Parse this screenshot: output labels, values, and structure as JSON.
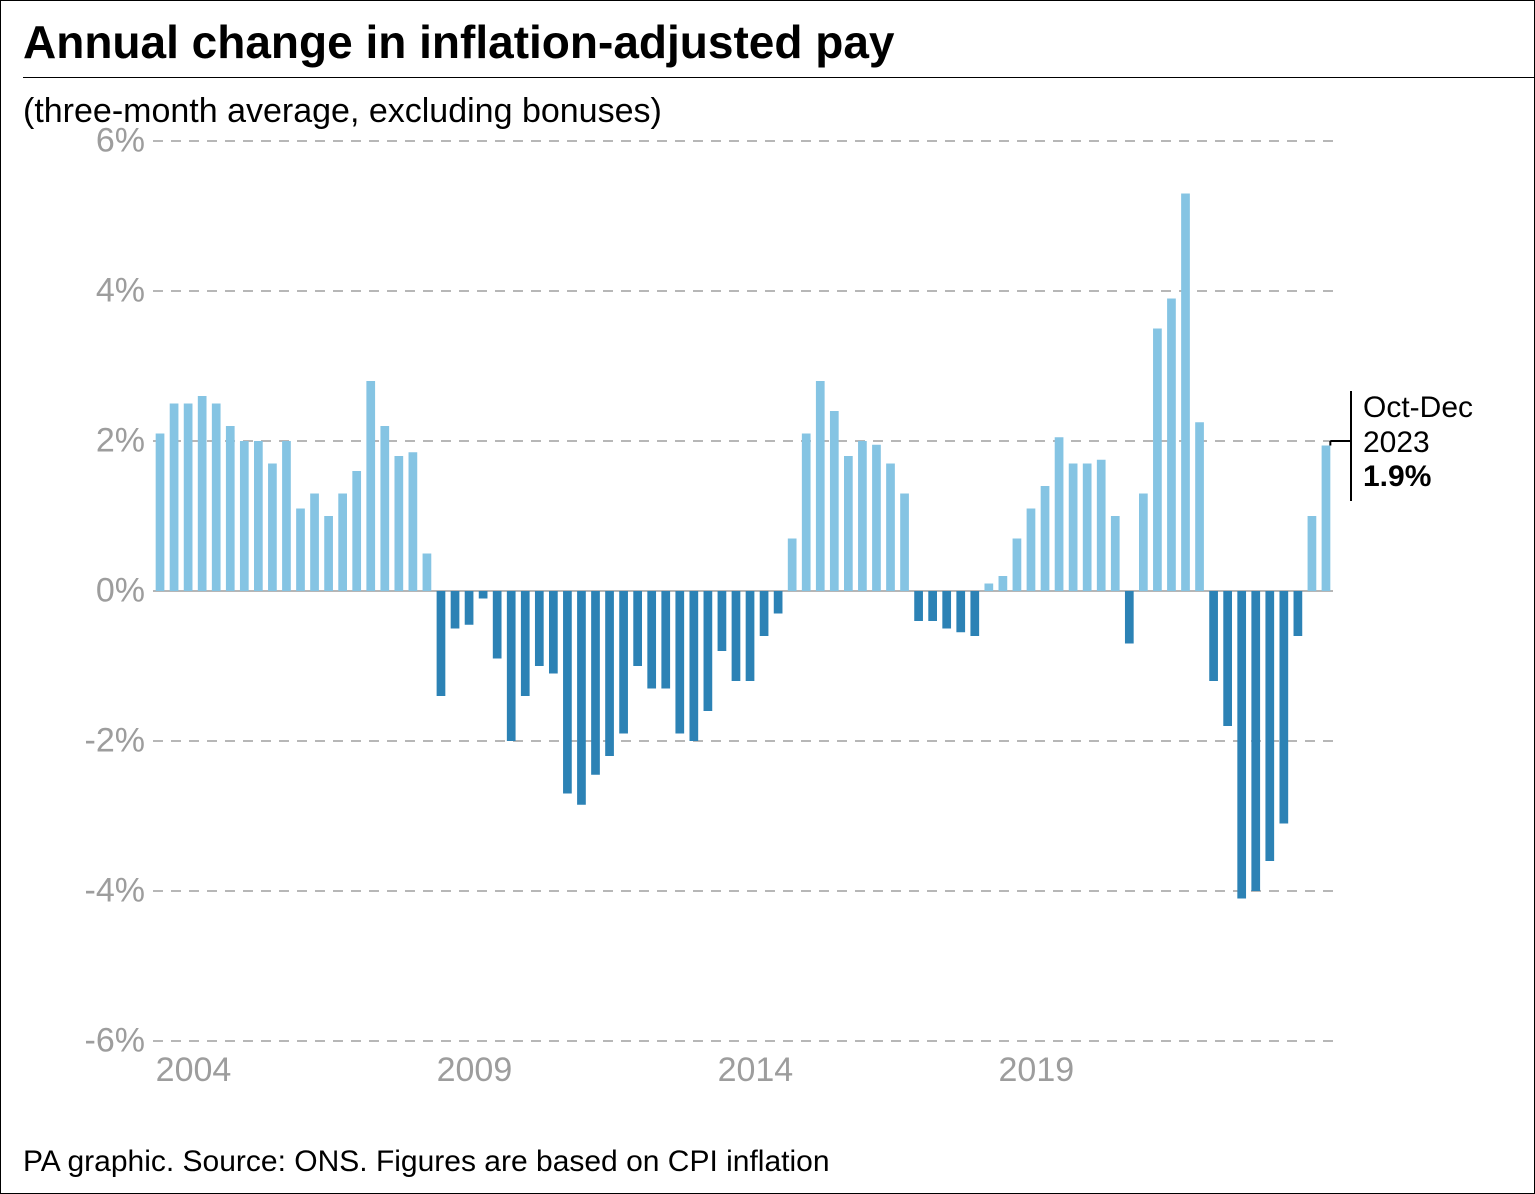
{
  "title": {
    "text": "Annual change in inflation-adjusted pay",
    "fontsize": 46,
    "fontweight": 700
  },
  "subtitle": {
    "text": "(three-month average, excluding bonuses)",
    "fontsize": 34
  },
  "footer": {
    "text": "PA graphic. Source: ONS. Figures are based on CPI inflation",
    "fontsize": 30
  },
  "chart": {
    "type": "bar",
    "background_color": "#ffffff",
    "grid_color": "#b7b7b7",
    "axis_zero_color": "#9d9d9d",
    "tick_label_color": "#9d9d9d",
    "tick_fontsize": 34,
    "positive_color": "#85c4e3",
    "negative_color": "#2c82b5",
    "bar_width_ratio": 0.62,
    "ylim": [
      -6,
      6
    ],
    "ytick_step": 2,
    "ytick_suffix": "%",
    "x_start": 2004,
    "x_end": 2024,
    "x_ticks": [
      2004,
      2009,
      2014,
      2019
    ],
    "x_sub_per_year": 4,
    "values": [
      2.1,
      2.5,
      2.5,
      2.6,
      2.5,
      2.2,
      2.0,
      2.0,
      1.7,
      2.0,
      1.1,
      1.3,
      1.0,
      1.3,
      1.6,
      2.8,
      2.2,
      1.8,
      1.85,
      0.5,
      -1.4,
      -0.5,
      -0.45,
      -0.1,
      -0.9,
      -2.0,
      -1.4,
      -1.0,
      -1.1,
      -2.7,
      -2.85,
      -2.45,
      -2.2,
      -1.9,
      -1.0,
      -1.3,
      -1.3,
      -1.9,
      -2.0,
      -1.6,
      -0.8,
      -1.2,
      -1.2,
      -0.6,
      -0.3,
      0.7,
      2.1,
      2.8,
      2.4,
      1.8,
      2.0,
      1.95,
      1.7,
      1.3,
      -0.4,
      -0.4,
      -0.5,
      -0.55,
      -0.6,
      0.1,
      0.2,
      0.7,
      1.1,
      1.4,
      2.05,
      1.7,
      1.7,
      1.75,
      1.0,
      -0.7,
      1.3,
      3.5,
      3.9,
      5.3,
      2.25,
      -1.2,
      -1.8,
      -4.1,
      -4.0,
      -3.6,
      -3.1,
      -0.6,
      1.0,
      1.94
    ],
    "annotation": {
      "line1": "Oct-Dec",
      "line2": "2023",
      "value": "1.9%",
      "fontsize": 30,
      "tick_color": "#000000"
    }
  }
}
